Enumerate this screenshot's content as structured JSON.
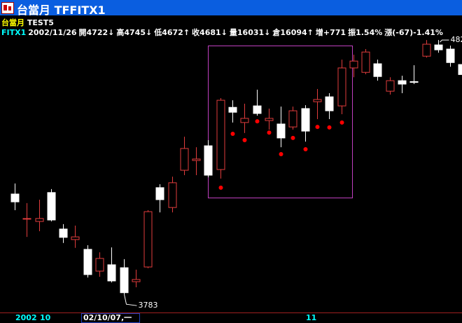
{
  "window": {
    "title": "台當月 TFFITX1"
  },
  "legend": {
    "name": "台當月",
    "indicator": "TEST5"
  },
  "info": {
    "symbol": "FITX1",
    "date": "2002/11/26",
    "items": [
      "開4722↓",
      "高4745↓",
      "低4672↑",
      "收4681↓",
      "量16031↓",
      "倉16094↑",
      "增+771",
      "振1.54%",
      "漲(-67)-1.41%"
    ]
  },
  "chart_data": {
    "type": "candlestick",
    "up_color": "#e03c3c",
    "down_color": "#ffffff",
    "indicator_color": "#ff0000",
    "ylim": [
      3712,
      4871
    ],
    "open": [
      4193,
      4091,
      4081,
      4199,
      4050,
      4007,
      3967,
      3878,
      3904,
      3892,
      3835,
      3895,
      4219,
      4138,
      4290,
      4330,
      4390,
      4293,
      4547,
      4485,
      4553,
      4493,
      4479,
      4467,
      4542,
      4570,
      4590,
      4553,
      4708,
      4690,
      4725,
      4613,
      4656,
      4652,
      4756,
      4802,
      4785,
      4722
    ],
    "high": [
      4236,
      4156,
      4170,
      4213,
      4070,
      4064,
      3984,
      3955,
      3975,
      3927,
      3884,
      4127,
      4233,
      4264,
      4427,
      4384,
      4413,
      4585,
      4576,
      4562,
      4619,
      4542,
      4550,
      4550,
      4556,
      4622,
      4605,
      4742,
      4762,
      4785,
      4742,
      4670,
      4676,
      4719,
      4822,
      4822,
      4799,
      4745
    ],
    "low": [
      4127,
      4018,
      4041,
      4081,
      3993,
      3973,
      3852,
      3855,
      3832,
      3783,
      3812,
      3890,
      4118,
      4118,
      4270,
      4270,
      4261,
      4256,
      4485,
      4442,
      4513,
      4456,
      4384,
      4456,
      4407,
      4499,
      4499,
      4519,
      4670,
      4682,
      4656,
      4599,
      4605,
      4642,
      4750,
      4770,
      4713,
      4672
    ],
    "close": [
      4161,
      4093,
      4093,
      4087,
      4016,
      4018,
      3864,
      3930,
      3838,
      3790,
      3844,
      4121,
      4170,
      4239,
      4379,
      4336,
      4270,
      4576,
      4527,
      4502,
      4522,
      4502,
      4422,
      4533,
      4450,
      4579,
      4533,
      4708,
      4736,
      4773,
      4673,
      4656,
      4642,
      4650,
      4805,
      4782,
      4730,
      4681
    ],
    "indicator": {
      "name": "TEST5",
      "values": [
        null,
        null,
        null,
        null,
        null,
        null,
        null,
        null,
        null,
        null,
        null,
        null,
        null,
        null,
        null,
        null,
        null,
        4219,
        4439,
        4413,
        4490,
        4444,
        4356,
        4422,
        4376,
        4467,
        4465,
        4485,
        null,
        null,
        null,
        null,
        null,
        null,
        null,
        null,
        null,
        null
      ]
    },
    "annotations": [
      "3783",
      "482"
    ]
  },
  "timeline": {
    "year": "2002",
    "month": "10",
    "cursor": "02/10/07,一",
    "next_month": "11"
  }
}
